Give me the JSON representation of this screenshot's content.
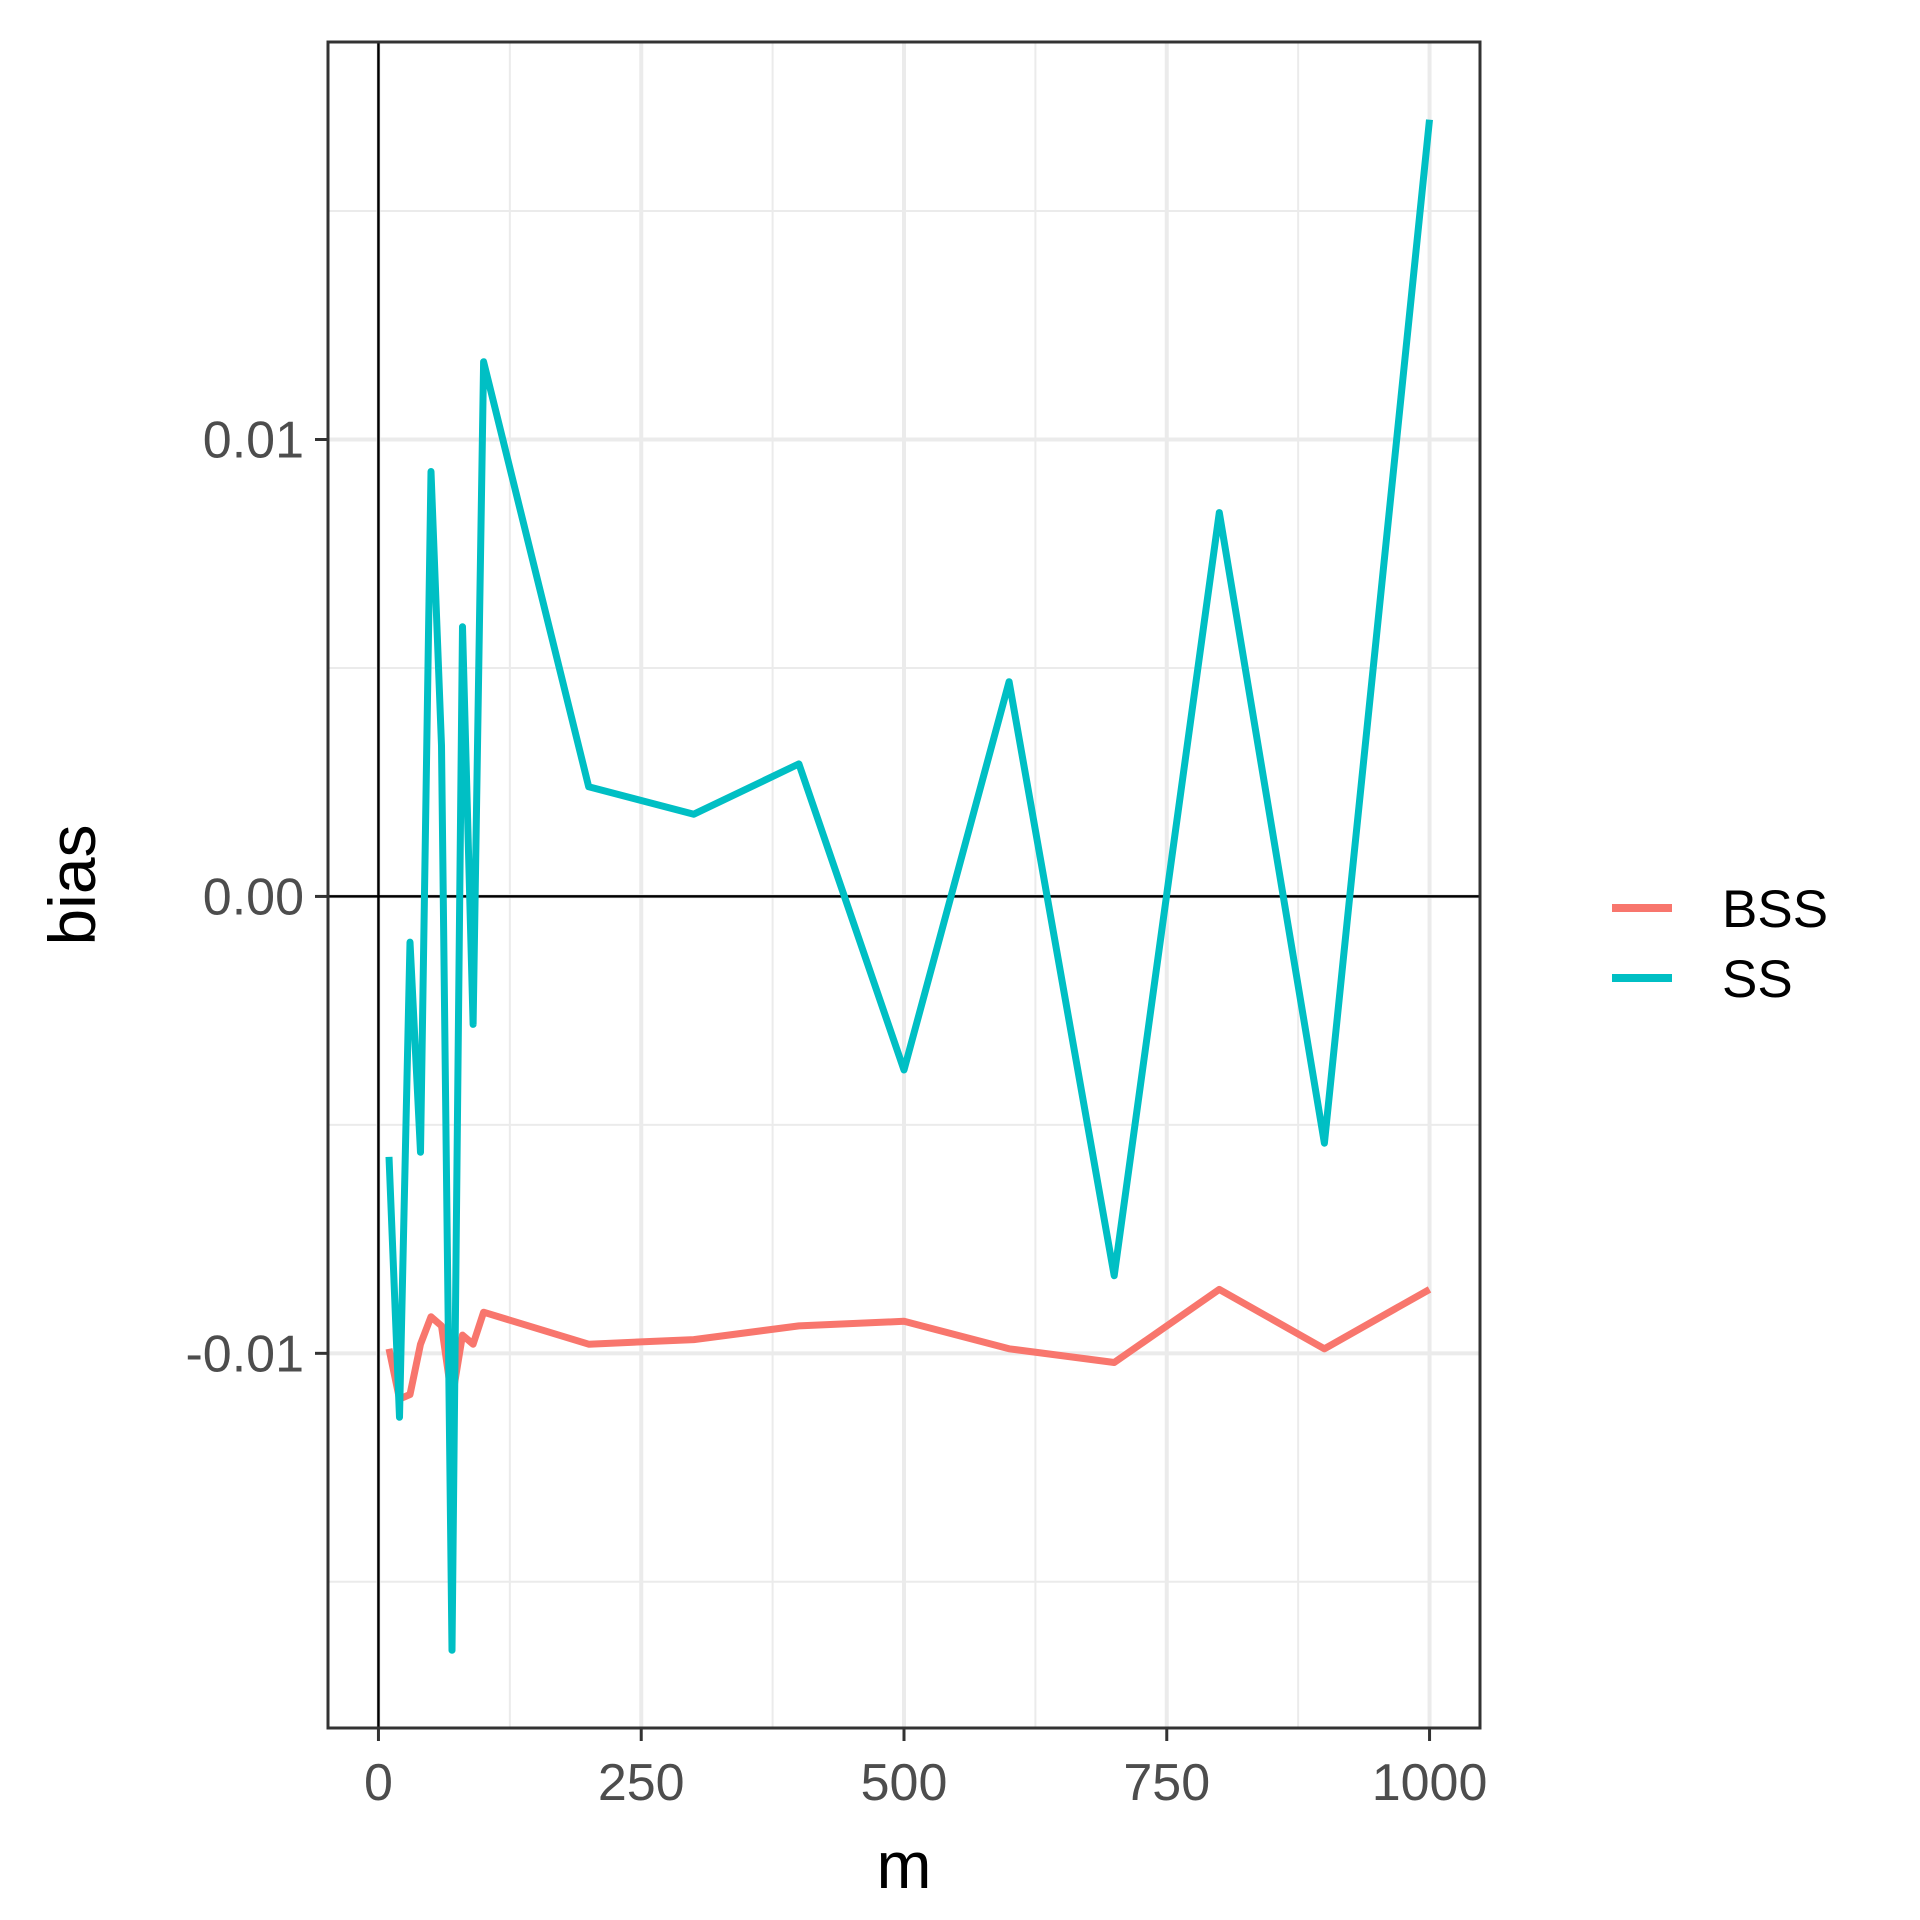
{
  "chart_data": {
    "type": "line",
    "xlabel": "m",
    "ylabel": "bias",
    "xlim": [
      -48,
      1048
    ],
    "ylim": [
      -0.0182,
      0.0187
    ],
    "x_ticks": [
      0,
      250,
      500,
      750,
      1000
    ],
    "x_tick_labels": [
      "0",
      "250",
      "500",
      "750",
      "1000"
    ],
    "x_minor_ticks": [
      125,
      375,
      625,
      875
    ],
    "y_ticks": [
      -0.01,
      0.0,
      0.01
    ],
    "y_tick_labels": [
      "-0.01",
      "0.00",
      "0.01"
    ],
    "y_minor_ticks": [
      -0.015,
      -0.005,
      0.005,
      0.015
    ],
    "reference_lines": {
      "x": 0,
      "y": 0
    },
    "grid": true,
    "legend_position": "right",
    "series": [
      {
        "name": "BSS",
        "color": "#F8766D",
        "points": [
          [
            10,
            -0.0099
          ],
          [
            20,
            -0.011
          ],
          [
            30,
            -0.0109
          ],
          [
            40,
            -0.0098
          ],
          [
            50,
            -0.0092
          ],
          [
            60,
            -0.0094
          ],
          [
            70,
            -0.011
          ],
          [
            80,
            -0.0096
          ],
          [
            90,
            -0.0098
          ],
          [
            100,
            -0.0091
          ],
          [
            200,
            -0.0098
          ],
          [
            300,
            -0.0097
          ],
          [
            400,
            -0.0094
          ],
          [
            500,
            -0.0093
          ],
          [
            600,
            -0.0099
          ],
          [
            700,
            -0.0102
          ],
          [
            800,
            -0.0086
          ],
          [
            900,
            -0.0099
          ],
          [
            1000,
            -0.0086
          ]
        ]
      },
      {
        "name": "SS",
        "color": "#00BFC4",
        "points": [
          [
            10,
            -0.0057
          ],
          [
            20,
            -0.0114
          ],
          [
            30,
            -0.001
          ],
          [
            40,
            -0.0056
          ],
          [
            50,
            0.0093
          ],
          [
            60,
            0.0033
          ],
          [
            70,
            -0.0165
          ],
          [
            80,
            0.0059
          ],
          [
            90,
            -0.0028
          ],
          [
            100,
            0.0117
          ],
          [
            200,
            0.0024
          ],
          [
            300,
            0.0018
          ],
          [
            400,
            0.0029
          ],
          [
            500,
            -0.0038
          ],
          [
            600,
            0.0047
          ],
          [
            700,
            -0.0083
          ],
          [
            800,
            0.0084
          ],
          [
            900,
            -0.0054
          ],
          [
            1000,
            0.017
          ]
        ]
      }
    ]
  }
}
